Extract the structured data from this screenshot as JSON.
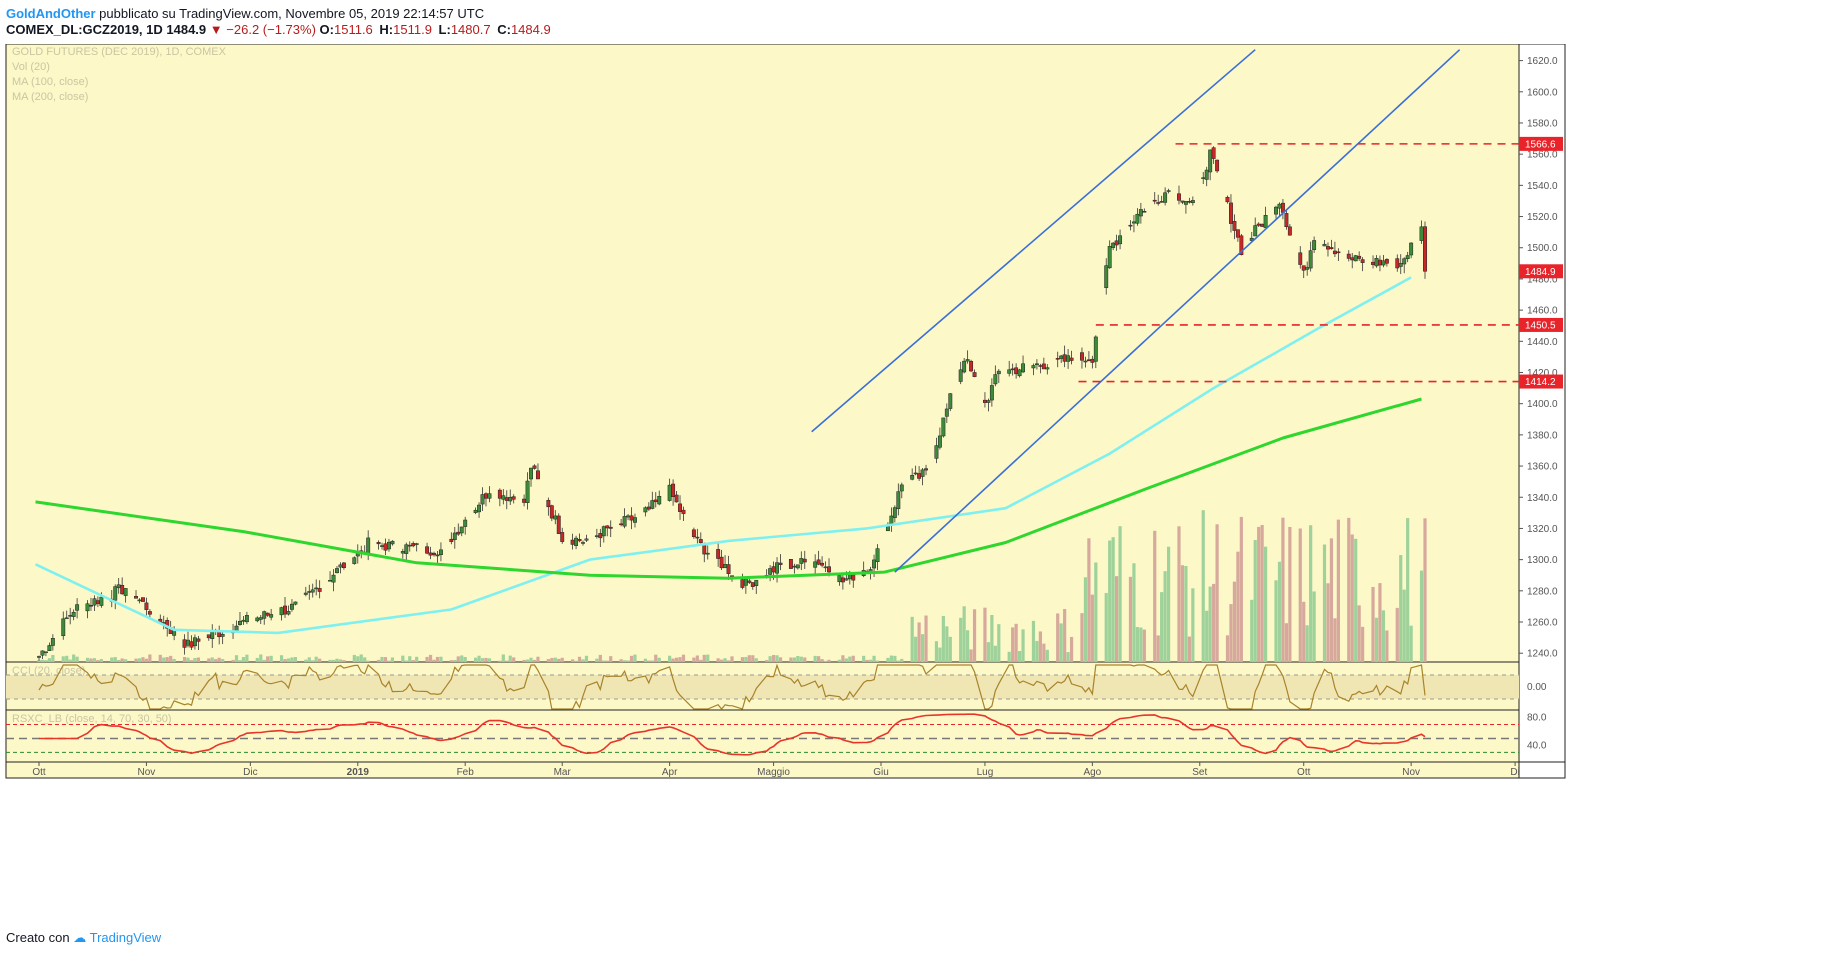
{
  "header": {
    "author": "GoldAndOther",
    "published_text": "pubblicato su TradingView.com, Novembre 05, 2019 22:14:57 UTC",
    "symbol": "COMEX_DL:GCZ2019, 1D",
    "last": "1484.9",
    "change": "−26.2 (−1.73%)",
    "o_label": "O:",
    "o": "1511.6",
    "h_label": "H:",
    "h": "1511.9",
    "l_label": "L:",
    "l": "1480.7",
    "c_label": "C:",
    "c": "1484.9"
  },
  "legend": {
    "title": "GOLD FUTURES (DEC 2019), 1D, COMEX",
    "vol": "Vol (20)",
    "ma100": "MA (100, close)",
    "ma200": "MA (200, close)",
    "cci": "CCI (20, close)",
    "rsi": "RSXC_LB (close, 14, 70, 30, 50)"
  },
  "footer": {
    "created": "Creato con",
    "brand": "TradingView"
  },
  "colors": {
    "background": "#fdf8c8",
    "bull": "#3d8b3a",
    "bear": "#c62828",
    "ma100": "#7ff0f0",
    "ma200": "#2ed62e",
    "channel": "#3a6fd8",
    "level": "#e8232a",
    "cci": "#a8832a",
    "rsi": "#e8352a",
    "vol_bull": "#9ed29a",
    "vol_bear": "#d6a99c"
  },
  "chart_data": {
    "type": "candlestick",
    "x_ticks": [
      "Ott",
      "Nov",
      "Dic",
      "2019",
      "Feb",
      "Mar",
      "Apr",
      "Maggio",
      "Giu",
      "Lug",
      "Ago",
      "Set",
      "Ott",
      "Nov",
      "Di"
    ],
    "x_tick_days": [
      1,
      32,
      62,
      93,
      124,
      152,
      183,
      213,
      244,
      274,
      305,
      336,
      366,
      397,
      427
    ],
    "y_ticks": [
      1620,
      1600,
      1580,
      1560,
      1540,
      1520,
      1500,
      1480,
      1460,
      1440,
      1420,
      1400,
      1380,
      1360,
      1340,
      1320,
      1300,
      1280,
      1260,
      1240
    ],
    "ylim": [
      1235,
      1630
    ],
    "key_points": [
      {
        "date": "2018-10-01",
        "price": 1238
      },
      {
        "date": "2018-10-11",
        "price": 1268
      },
      {
        "date": "2018-10-26",
        "price": 1282
      },
      {
        "date": "2018-11-13",
        "price": 1245
      },
      {
        "date": "2018-11-29",
        "price": 1260
      },
      {
        "date": "2018-12-14",
        "price": 1270
      },
      {
        "date": "2019-01-04",
        "price": 1310
      },
      {
        "date": "2019-01-25",
        "price": 1306
      },
      {
        "date": "2019-02-08",
        "price": 1345
      },
      {
        "date": "2019-02-18",
        "price": 1337
      },
      {
        "date": "2019-02-20",
        "price": 1360
      },
      {
        "date": "2019-03-01",
        "price": 1315
      },
      {
        "date": "2019-03-07",
        "price": 1312
      },
      {
        "date": "2019-03-25",
        "price": 1330
      },
      {
        "date": "2019-04-01",
        "price": 1344
      },
      {
        "date": "2019-04-09",
        "price": 1311
      },
      {
        "date": "2019-04-23",
        "price": 1284
      },
      {
        "date": "2019-05-03",
        "price": 1296
      },
      {
        "date": "2019-05-14",
        "price": 1299
      },
      {
        "date": "2019-05-21",
        "price": 1286
      },
      {
        "date": "2019-05-30",
        "price": 1298
      },
      {
        "date": "2019-06-07",
        "price": 1348
      },
      {
        "date": "2019-06-14",
        "price": 1355
      },
      {
        "date": "2019-06-25",
        "price": 1430
      },
      {
        "date": "2019-07-01",
        "price": 1400
      },
      {
        "date": "2019-07-05",
        "price": 1420
      },
      {
        "date": "2019-07-19",
        "price": 1426
      },
      {
        "date": "2019-08-01",
        "price": 1430
      },
      {
        "date": "2019-08-06",
        "price": 1500
      },
      {
        "date": "2019-08-15",
        "price": 1524
      },
      {
        "date": "2019-08-23",
        "price": 1537
      },
      {
        "date": "2019-08-30",
        "price": 1529
      },
      {
        "date": "2019-09-04",
        "price": 1560
      },
      {
        "date": "2019-09-13",
        "price": 1499
      },
      {
        "date": "2019-09-24",
        "price": 1531
      },
      {
        "date": "2019-10-01",
        "price": 1482
      },
      {
        "date": "2019-10-04",
        "price": 1508
      },
      {
        "date": "2019-10-15",
        "price": 1492
      },
      {
        "date": "2019-10-29",
        "price": 1490
      },
      {
        "date": "2019-11-04",
        "price": 1511.6
      },
      {
        "date": "2019-11-05",
        "price": 1484.9
      }
    ],
    "ma100": {
      "name": "MA (100, close)",
      "points": [
        [
          0,
          1297
        ],
        [
          40,
          1255
        ],
        [
          70,
          1253
        ],
        [
          120,
          1268
        ],
        [
          160,
          1300
        ],
        [
          200,
          1312
        ],
        [
          240,
          1320
        ],
        [
          280,
          1333
        ],
        [
          310,
          1368
        ],
        [
          340,
          1410
        ],
        [
          370,
          1448
        ],
        [
          397,
          1481
        ]
      ]
    },
    "ma200": {
      "name": "MA (200, close)",
      "points": [
        [
          0,
          1337
        ],
        [
          60,
          1318
        ],
        [
          110,
          1298
        ],
        [
          160,
          1290
        ],
        [
          200,
          1288
        ],
        [
          245,
          1292
        ],
        [
          280,
          1311
        ],
        [
          320,
          1345
        ],
        [
          360,
          1378
        ],
        [
          400,
          1403
        ]
      ]
    },
    "horizontal_levels": [
      {
        "price": 1566.6,
        "label": "1566.6",
        "from_day": 329
      },
      {
        "price": 1450.5,
        "label": "1450.5",
        "from_day": 306
      },
      {
        "price": 1414.2,
        "label": "1414.2",
        "from_day": 301
      }
    ],
    "channel_lines": [
      {
        "x1": 224,
        "y1": 1382,
        "x2": 352,
        "y2": 1627
      },
      {
        "x1": 248,
        "y1": 1292,
        "x2": 411,
        "y2": 1627
      }
    ],
    "last_price_label": "1484.9",
    "cci": {
      "name": "CCI (20, close)",
      "tick_labels": [
        "0.00"
      ],
      "upper": 100,
      "lower": -100
    },
    "rsi": {
      "name": "RSXC_LB (close, 14, 70, 30, 50)",
      "tick_labels": [
        "80.0",
        "40.0"
      ],
      "levels": [
        70,
        50,
        30
      ]
    }
  }
}
